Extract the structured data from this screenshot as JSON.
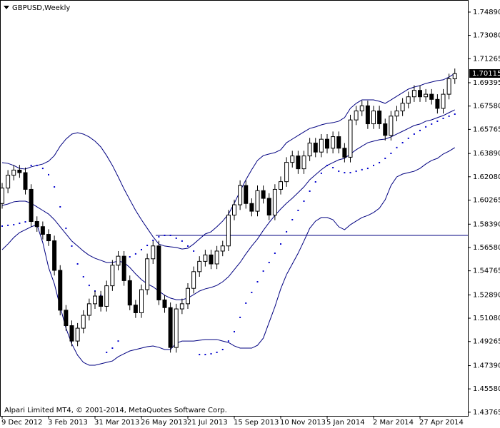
{
  "chart_data": {
    "type": "candlestick",
    "title": "GBPUSD,Weekly",
    "footer": "Alpari Limited MT4, © 2001-2014, MetaQuotes Software Corp.",
    "categories": [
      "9 Dec 2012",
      null,
      null,
      null,
      null,
      null,
      null,
      null,
      "3 Feb 2013",
      null,
      null,
      null,
      null,
      null,
      null,
      null,
      "31 Mar 2013",
      null,
      null,
      null,
      null,
      null,
      null,
      null,
      "26 May 2013",
      null,
      null,
      null,
      null,
      null,
      null,
      null,
      "21 Jul 2013",
      null,
      null,
      null,
      null,
      null,
      null,
      null,
      "15 Sep 2013",
      null,
      null,
      null,
      null,
      null,
      null,
      null,
      "10 Nov 2013",
      null,
      null,
      null,
      null,
      null,
      null,
      null,
      "5 Jan 2014",
      null,
      null,
      null,
      null,
      null,
      null,
      null,
      "2 Mar 2014",
      null,
      null,
      null,
      null,
      null,
      null,
      null,
      "27 Apr 2014",
      null,
      null,
      null,
      null,
      null,
      null
    ],
    "open": [
      1.6,
      1.612,
      1.622,
      1.626,
      1.624,
      1.611,
      1.586,
      1.582,
      1.576,
      1.571,
      1.548,
      1.517,
      1.505,
      1.493,
      1.503,
      1.513,
      1.522,
      1.528,
      1.52,
      1.536,
      1.552,
      1.559,
      1.54,
      1.521,
      1.515,
      1.533,
      1.557,
      1.567,
      1.525,
      1.519,
      1.488,
      1.518,
      1.522,
      1.534,
      1.547,
      1.555,
      1.56,
      1.553,
      1.563,
      1.567,
      1.591,
      1.599,
      1.614,
      1.6,
      1.594,
      1.61,
      1.604,
      1.591,
      1.611,
      1.617,
      1.632,
      1.637,
      1.627,
      1.637,
      1.647,
      1.64,
      1.65,
      1.643,
      1.652,
      1.643,
      1.636,
      1.665,
      1.672,
      1.676,
      1.662,
      1.672,
      1.662,
      1.653,
      1.668,
      1.672,
      1.678,
      1.683,
      1.688,
      1.683,
      1.685,
      1.681,
      1.674,
      1.685,
      1.697
    ],
    "high": [
      1.616,
      1.626,
      1.63,
      1.63,
      1.628,
      1.615,
      1.59,
      1.586,
      1.58,
      1.575,
      1.552,
      1.521,
      1.509,
      1.507,
      1.517,
      1.526,
      1.532,
      1.532,
      1.54,
      1.556,
      1.563,
      1.563,
      1.544,
      1.525,
      1.537,
      1.561,
      1.571,
      1.571,
      1.529,
      1.523,
      1.522,
      1.526,
      1.538,
      1.551,
      1.559,
      1.564,
      1.564,
      1.567,
      1.571,
      1.595,
      1.603,
      1.618,
      1.618,
      1.604,
      1.614,
      1.614,
      1.608,
      1.615,
      1.621,
      1.636,
      1.641,
      1.641,
      1.641,
      1.651,
      1.651,
      1.654,
      1.654,
      1.656,
      1.656,
      1.647,
      1.669,
      1.676,
      1.68,
      1.68,
      1.676,
      1.676,
      1.666,
      1.672,
      1.676,
      1.682,
      1.687,
      1.692,
      1.692,
      1.689,
      1.689,
      1.685,
      1.689,
      1.701,
      1.705
    ],
    "low": [
      1.596,
      1.608,
      1.618,
      1.62,
      1.607,
      1.582,
      1.578,
      1.572,
      1.567,
      1.544,
      1.513,
      1.501,
      1.489,
      1.489,
      1.499,
      1.509,
      1.518,
      1.516,
      1.516,
      1.532,
      1.548,
      1.536,
      1.517,
      1.511,
      1.511,
      1.529,
      1.553,
      1.521,
      1.515,
      1.484,
      1.484,
      1.514,
      1.518,
      1.53,
      1.543,
      1.551,
      1.549,
      1.549,
      1.559,
      1.563,
      1.587,
      1.595,
      1.596,
      1.59,
      1.59,
      1.6,
      1.587,
      1.587,
      1.607,
      1.613,
      1.628,
      1.623,
      1.623,
      1.633,
      1.636,
      1.636,
      1.639,
      1.639,
      1.639,
      1.632,
      1.632,
      1.661,
      1.668,
      1.658,
      1.658,
      1.658,
      1.649,
      1.649,
      1.664,
      1.668,
      1.674,
      1.679,
      1.679,
      1.679,
      1.677,
      1.67,
      1.67,
      1.681,
      1.693
    ],
    "close": [
      1.612,
      1.622,
      1.626,
      1.624,
      1.611,
      1.586,
      1.582,
      1.576,
      1.571,
      1.548,
      1.517,
      1.505,
      1.493,
      1.503,
      1.513,
      1.522,
      1.528,
      1.52,
      1.536,
      1.552,
      1.559,
      1.54,
      1.521,
      1.515,
      1.533,
      1.557,
      1.567,
      1.525,
      1.519,
      1.488,
      1.518,
      1.522,
      1.534,
      1.547,
      1.555,
      1.56,
      1.553,
      1.563,
      1.567,
      1.591,
      1.599,
      1.614,
      1.6,
      1.594,
      1.61,
      1.604,
      1.591,
      1.611,
      1.617,
      1.632,
      1.637,
      1.627,
      1.637,
      1.647,
      1.64,
      1.65,
      1.643,
      1.652,
      1.643,
      1.636,
      1.665,
      1.672,
      1.676,
      1.662,
      1.672,
      1.662,
      1.653,
      1.668,
      1.672,
      1.678,
      1.683,
      1.688,
      1.683,
      1.685,
      1.681,
      1.674,
      1.685,
      1.697,
      1.701
    ],
    "up_color": "#ffffff",
    "down_color": "#000000",
    "candle_outline": "#000000",
    "bollinger_upper": [
      1.6318,
      1.6312,
      1.6296,
      1.6273,
      1.6268,
      1.6285,
      1.6296,
      1.6307,
      1.6329,
      1.6373,
      1.6446,
      1.6501,
      1.654,
      1.6551,
      1.654,
      1.6518,
      1.6485,
      1.644,
      1.6373,
      1.6296,
      1.6207,
      1.6113,
      1.6029,
      1.5946,
      1.5874,
      1.5807,
      1.5741,
      1.5685,
      1.5669,
      1.5663,
      1.5658,
      1.5646,
      1.5652,
      1.5685,
      1.5724,
      1.5763,
      1.578,
      1.5819,
      1.5863,
      1.5918,
      1.6002,
      1.6096,
      1.6185,
      1.6263,
      1.6335,
      1.6373,
      1.6385,
      1.6396,
      1.6418,
      1.6473,
      1.6501,
      1.6529,
      1.6557,
      1.6584,
      1.6596,
      1.6612,
      1.6623,
      1.6629,
      1.664,
      1.6668,
      1.674,
      1.6779,
      1.6806,
      1.6806,
      1.6806,
      1.6795,
      1.6779,
      1.6806,
      1.6834,
      1.6862,
      1.689,
      1.6906,
      1.6917,
      1.6934,
      1.6945,
      1.6956,
      1.6962,
      1.6984,
      1.7012
    ],
    "bollinger_middle": [
      1.5985,
      1.5996,
      1.6013,
      1.6018,
      1.6018,
      1.6002,
      1.5974,
      1.5946,
      1.5918,
      1.5874,
      1.5819,
      1.5763,
      1.5708,
      1.5669,
      1.563,
      1.5597,
      1.5574,
      1.5558,
      1.5541,
      1.5541,
      1.5552,
      1.5541,
      1.5502,
      1.5452,
      1.5408,
      1.5375,
      1.5352,
      1.5319,
      1.5286,
      1.5264,
      1.5252,
      1.5252,
      1.5264,
      1.5291,
      1.5319,
      1.5336,
      1.5347,
      1.5363,
      1.5391,
      1.543,
      1.5486,
      1.5541,
      1.5608,
      1.5669,
      1.5724,
      1.5791,
      1.5852,
      1.5907,
      1.5957,
      1.6002,
      1.6041,
      1.6085,
      1.6129,
      1.6185,
      1.6224,
      1.6263,
      1.6296,
      1.6318,
      1.634,
      1.6351,
      1.6385,
      1.6418,
      1.6446,
      1.6473,
      1.6485,
      1.6496,
      1.6501,
      1.6518,
      1.654,
      1.6562,
      1.6584,
      1.6607,
      1.6618,
      1.664,
      1.6651,
      1.6668,
      1.6684,
      1.6707,
      1.6729
    ],
    "bollinger_lower": [
      1.5641,
      1.5685,
      1.5735,
      1.5774,
      1.5796,
      1.5819,
      1.5835,
      1.5696,
      1.5502,
      1.5375,
      1.5197,
      1.503,
      1.4908,
      1.482,
      1.4764,
      1.4742,
      1.4742,
      1.4753,
      1.4764,
      1.4775,
      1.4808,
      1.4831,
      1.4853,
      1.4864,
      1.4875,
      1.4886,
      1.4892,
      1.4881,
      1.4864,
      1.4864,
      1.4914,
      1.493,
      1.493,
      1.493,
      1.4936,
      1.4942,
      1.4942,
      1.4942,
      1.493,
      1.4919,
      1.4892,
      1.4875,
      1.4875,
      1.4875,
      1.4897,
      1.4953,
      1.5075,
      1.5197,
      1.5336,
      1.5447,
      1.553,
      1.5613,
      1.5708,
      1.5807,
      1.5863,
      1.5891,
      1.5891,
      1.5874,
      1.5819,
      1.5796,
      1.5835,
      1.5863,
      1.5891,
      1.5907,
      1.593,
      1.5963,
      1.6029,
      1.614,
      1.6207,
      1.6229,
      1.624,
      1.6251,
      1.6273,
      1.6307,
      1.6335,
      1.6351,
      1.6385,
      1.6407,
      1.6435
    ],
    "bands_color": "#000080",
    "sar": [
      1.5824,
      1.583,
      1.5835,
      1.5846,
      1.5857,
      1.6296,
      1.6296,
      1.6273,
      1.6224,
      1.6129,
      1.5974,
      1.5807,
      1.5669,
      1.553,
      1.543,
      1.5363,
      1.5319,
      1.5286,
      1.4842,
      1.4875,
      1.493,
      1.5585,
      1.5585,
      1.5608,
      1.5641,
      1.5674,
      1.5713,
      1.5741,
      1.5752,
      1.5752,
      1.573,
      1.5708,
      1.5669,
      1.563,
      1.4825,
      1.4825,
      1.4831,
      1.4842,
      1.4864,
      1.493,
      1.5003,
      1.5114,
      1.5225,
      1.5308,
      1.5391,
      1.5474,
      1.5541,
      1.5613,
      1.5685,
      1.578,
      1.5874,
      1.5946,
      1.6018,
      1.6096,
      1.6168,
      1.6235,
      1.6296,
      1.6279,
      1.6251,
      1.624,
      1.624,
      1.6251,
      1.6263,
      1.6273,
      1.6296,
      1.6318,
      1.6351,
      1.639,
      1.6435,
      1.6473,
      1.6507,
      1.654,
      1.6568,
      1.6596,
      1.6618,
      1.664,
      1.6662,
      1.6679,
      1.6695
    ],
    "sar_color": "#0000cd",
    "hline": 1.5752,
    "hline_color": "#000080",
    "bid": 1.70115,
    "ylim": [
      1.4348,
      1.7583
    ],
    "yticks": [
      {
        "value": 1.7489,
        "label": "1.74890"
      },
      {
        "value": 1.7308,
        "label": "1.73080"
      },
      1.71265,
      1.69395,
      {
        "value": 1.6758,
        "label": "1.67580"
      },
      1.65765,
      {
        "value": 1.6389,
        "label": "1.63890"
      },
      {
        "value": 1.6208,
        "label": "1.62080"
      },
      1.60265,
      {
        "value": 1.5839,
        "label": "1.58390"
      },
      {
        "value": 1.5658,
        "label": "1.56580"
      },
      1.54765,
      {
        "value": 1.5289,
        "label": "1.52890"
      },
      {
        "value": 1.5108,
        "label": "1.51080"
      },
      1.49265,
      {
        "value": 1.4739,
        "label": "1.47390"
      },
      {
        "value": 1.4558,
        "label": "1.45580"
      },
      1.43765
    ],
    "grid": false
  }
}
